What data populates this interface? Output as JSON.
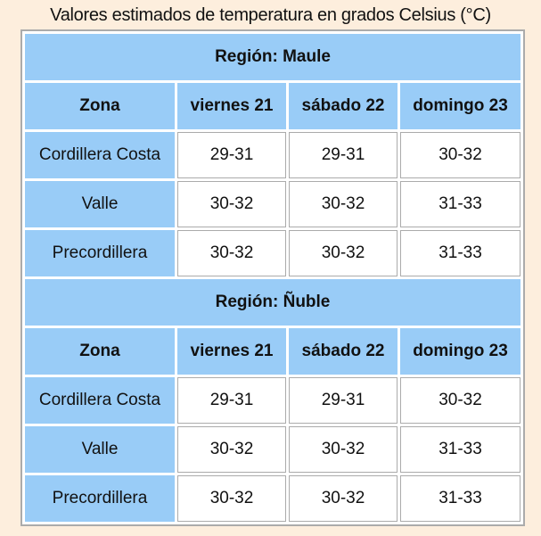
{
  "page": {
    "title": "Valores estimados de temperatura en grados Celsius (°C)"
  },
  "colors": {
    "page_background": "#FDEEDD",
    "cell_blue": "#99CCF7",
    "border_gray": "#ABABAB",
    "cell_white": "#FFFFFF",
    "text": "#111111"
  },
  "chart_data": {
    "type": "table",
    "title": "Valores estimados de temperatura en grados Celsius (°C)",
    "sections": [
      {
        "region_label": "Región: Maule",
        "columns": [
          "Zona",
          "viernes 21",
          "sábado 22",
          "domingo 23"
        ],
        "rows": [
          {
            "zona": "Cordillera Costa",
            "values": [
              "29-31",
              "29-31",
              "30-32"
            ]
          },
          {
            "zona": "Valle",
            "values": [
              "30-32",
              "30-32",
              "31-33"
            ]
          },
          {
            "zona": "Precordillera",
            "values": [
              "30-32",
              "30-32",
              "31-33"
            ]
          }
        ]
      },
      {
        "region_label": "Región: Ñuble",
        "columns": [
          "Zona",
          "viernes 21",
          "sábado 22",
          "domingo 23"
        ],
        "rows": [
          {
            "zona": "Cordillera Costa",
            "values": [
              "29-31",
              "29-31",
              "30-32"
            ]
          },
          {
            "zona": "Valle",
            "values": [
              "30-32",
              "30-32",
              "31-33"
            ]
          },
          {
            "zona": "Precordillera",
            "values": [
              "30-32",
              "30-32",
              "31-33"
            ]
          }
        ]
      }
    ]
  }
}
